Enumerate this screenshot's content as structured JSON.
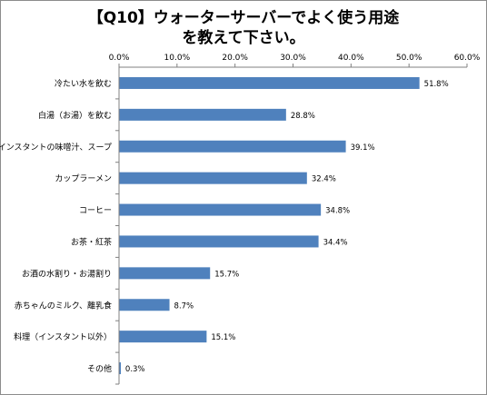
{
  "chart_data": {
    "type": "bar",
    "orientation": "horizontal",
    "title_line1": "【Q10】ウォーターサーバーでよく使う用途",
    "title_line2": "を教えて下さい。",
    "categories": [
      "冷たい水を飲む",
      "白湯（お湯）を飲む",
      "インスタントの味噌汁、スープ",
      "カップラーメン",
      "コーヒー",
      "お茶・紅茶",
      "お酒の水割り・お湯割り",
      "赤ちゃんのミルク、離乳食",
      "料理（インスタント以外）",
      "その他"
    ],
    "values": [
      51.8,
      28.8,
      39.1,
      32.4,
      34.8,
      34.4,
      15.7,
      8.7,
      15.1,
      0.3
    ],
    "value_labels": [
      "51.8%",
      "28.8%",
      "39.1%",
      "32.4%",
      "34.8%",
      "34.4%",
      "15.7%",
      "8.7%",
      "15.1%",
      "0.3%"
    ],
    "x_ticks": [
      "0.0%",
      "10.0%",
      "20.0%",
      "30.0%",
      "40.0%",
      "50.0%",
      "60.0%"
    ],
    "xlim": [
      0,
      60
    ],
    "axis_position": "top",
    "grid": false,
    "legend": "none",
    "bar_color": "#4f81bd"
  }
}
